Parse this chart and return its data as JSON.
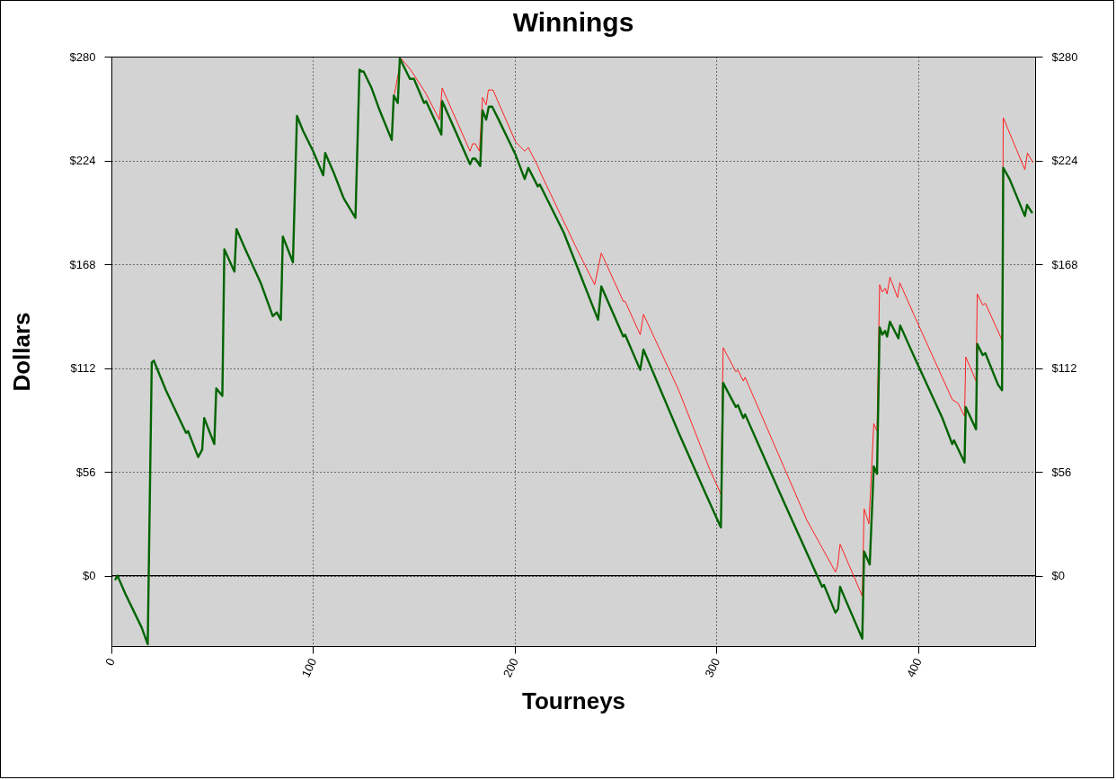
{
  "chart_data": {
    "type": "line",
    "title": "Winnings",
    "xlabel": "Tourneys",
    "ylabel": "Dollars",
    "xlim": [
      0,
      458
    ],
    "xticks": [
      0,
      100,
      200,
      300,
      400
    ],
    "ylim": [
      -38,
      280
    ],
    "yticks": [
      {
        "value": 0,
        "label": "$0"
      },
      {
        "value": 56,
        "label": "$56"
      },
      {
        "value": 112,
        "label": "$112"
      },
      {
        "value": 168,
        "label": "$168"
      },
      {
        "value": 224,
        "label": "$224"
      },
      {
        "value": 280,
        "label": "$280"
      }
    ],
    "y2lim": [
      -38,
      280
    ],
    "y2ticks": [
      {
        "value": 0,
        "label": "$0"
      },
      {
        "value": 56,
        "label": "$56"
      },
      {
        "value": 112,
        "label": "$112"
      },
      {
        "value": 168,
        "label": "$168"
      },
      {
        "value": 224,
        "label": "$224"
      },
      {
        "value": 280,
        "label": "$280"
      }
    ],
    "grid": true,
    "line_style": "solid",
    "marker": "none",
    "ref_lines": [
      {
        "axis": "y",
        "value": 0,
        "color": "#000000",
        "line_style": "solid"
      }
    ],
    "series": [
      {
        "color": "#ff2020",
        "x": [
          140.4,
          143.6,
          148.3,
          156,
          162.6,
          164,
          177.8,
          179.1,
          180.4,
          182.5,
          184,
          185.8,
          186.9,
          189.2,
          200.4,
          204.9,
          206.7,
          211.4,
          212.9,
          230,
          239.6,
          242.9,
          253.8,
          254.7,
          262.2,
          263.8,
          281.3,
          296.4,
          302.2,
          303.3,
          309.6,
          310.6,
          313.3,
          314.2,
          344.8,
          352.4,
          359,
          360,
          361.3,
          372.3,
          373.2,
          375.6,
          378,
          379.6,
          380.9,
          382.2,
          383.6,
          384.6,
          386,
          389.8,
          390.9,
          397.8,
          416.9,
          419.8,
          423,
          423.6,
          428.7,
          429.3,
          432,
          433.3,
          441.6,
          442.2,
          452.9,
          454.2,
          456.8
        ],
        "values": [
          260,
          279,
          273,
          260,
          246,
          263,
          229,
          233,
          233,
          229,
          258,
          254,
          262,
          262,
          234,
          229,
          231,
          221,
          217,
          178,
          157,
          174,
          148,
          148,
          130,
          141,
          100,
          58,
          44,
          123,
          110,
          111,
          105,
          107,
          30,
          15,
          2,
          5,
          17,
          -11,
          36,
          28,
          82,
          78,
          157,
          153,
          155,
          152,
          161,
          150,
          158,
          141,
          95,
          93,
          86,
          118,
          105,
          152,
          146,
          147,
          127,
          247,
          219,
          228,
          223
        ]
      },
      {
        "color": "#006400",
        "x": [
          2,
          3,
          7,
          15,
          18,
          20,
          21,
          27,
          37,
          38,
          43,
          45,
          46,
          51,
          52,
          55,
          56,
          61,
          62,
          66,
          74,
          80,
          82,
          84,
          85,
          90,
          92,
          95,
          100,
          105,
          106,
          110,
          115,
          116,
          121,
          123,
          124,
          125,
          129,
          133,
          139,
          140,
          142,
          143,
          148,
          150,
          155,
          156,
          163.6,
          164,
          177.8,
          179.1,
          180.4,
          182.9,
          184,
          185.8,
          187.1,
          188.8,
          192,
          200.4,
          204.9,
          206.7,
          211.4,
          212.4,
          224.3,
          241.3,
          242.9,
          253.8,
          254.7,
          262.2,
          263.8,
          281.3,
          294.7,
          302.2,
          303.3,
          309.6,
          310.6,
          313.3,
          314.2,
          333.3,
          352.4,
          353.3,
          359,
          360.3,
          361.3,
          363.6,
          372.3,
          373.2,
          376,
          378,
          379.6,
          380.9,
          382.2,
          383.6,
          384.6,
          386,
          390.2,
          391.1,
          396,
          412,
          416.9,
          417.8,
          423,
          423.6,
          428.7,
          429.3,
          432,
          433.3,
          439.6,
          441.6,
          442.2,
          445.3,
          452.9,
          454,
          456.4
        ],
        "values": [
          -2,
          0,
          -10,
          -28,
          -37,
          115,
          116,
          100,
          77,
          78,
          64,
          68,
          85,
          71,
          101,
          97,
          176,
          164,
          187,
          177,
          158,
          140,
          142,
          138,
          183,
          169,
          248,
          240,
          229,
          216,
          228,
          218,
          204,
          202,
          193,
          273,
          272,
          272,
          263,
          251,
          235,
          259,
          255,
          279,
          268,
          268,
          255,
          256,
          238,
          256,
          222,
          225,
          225,
          221,
          251,
          246,
          253,
          253,
          246,
          227,
          214,
          220,
          210,
          211,
          185,
          138,
          156,
          129,
          130,
          111,
          122,
          77,
          44,
          26,
          104,
          91,
          92,
          85,
          87,
          40,
          -6,
          -5,
          -20,
          -18,
          -6,
          -12,
          -34,
          13,
          6,
          59,
          55,
          134,
          130,
          132,
          129,
          137,
          128,
          135,
          123,
          85,
          71,
          73,
          61,
          91,
          79,
          125,
          119,
          120,
          103,
          100,
          220,
          214,
          194,
          200,
          196
        ]
      }
    ]
  }
}
